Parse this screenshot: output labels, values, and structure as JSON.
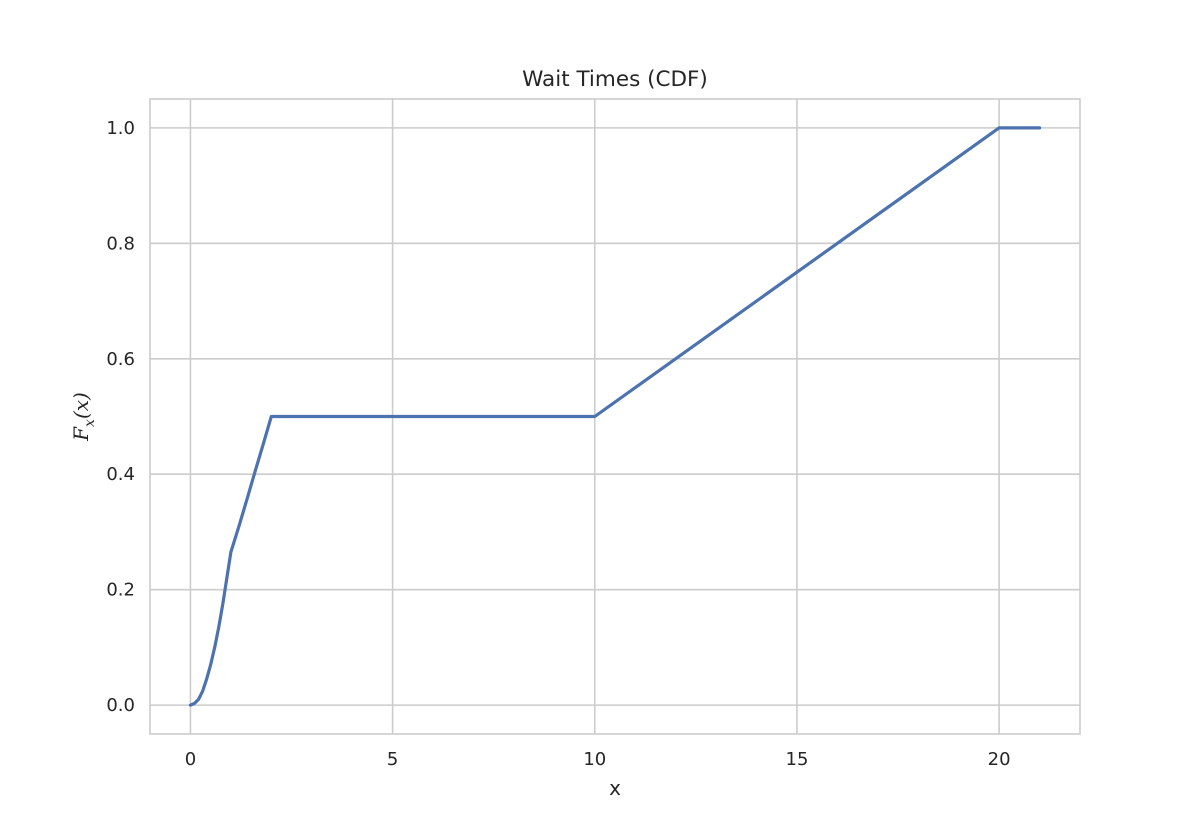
{
  "chart_data": {
    "type": "line",
    "title": "Wait Times (CDF)",
    "xlabel": "x",
    "ylabel": {
      "base": "F",
      "sub": "x",
      "arg": "(x)"
    },
    "xlim": [
      -1,
      22
    ],
    "ylim": [
      -0.05,
      1.05
    ],
    "xticks": [
      0,
      5,
      10,
      15,
      20
    ],
    "xtick_labels": [
      "0",
      "5",
      "10",
      "15",
      "20"
    ],
    "yticks": [
      0.0,
      0.2,
      0.4,
      0.6,
      0.8,
      1.0
    ],
    "ytick_labels": [
      "0.0",
      "0.2",
      "0.4",
      "0.6",
      "0.8",
      "1.0"
    ],
    "grid": true,
    "series": [
      {
        "color": "#4c72b0",
        "x": [
          0,
          0.1,
          0.2,
          0.3,
          0.4,
          0.5,
          0.6,
          0.7,
          0.8,
          0.9,
          1.0,
          1.2,
          1.4,
          1.6,
          1.8,
          2.0,
          10.0,
          20.0,
          21.0
        ],
        "y": [
          0,
          0.003,
          0.01,
          0.024,
          0.045,
          0.07,
          0.1,
          0.135,
          0.175,
          0.22,
          0.265,
          0.31,
          0.357,
          0.405,
          0.452,
          0.5,
          0.5,
          1.0,
          1.0
        ]
      }
    ]
  }
}
